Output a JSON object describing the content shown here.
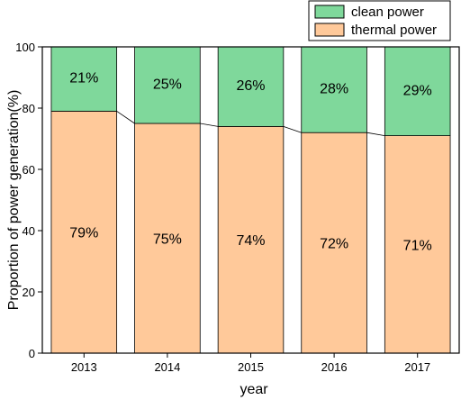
{
  "chart_data": {
    "type": "bar",
    "stacked": true,
    "normalized": true,
    "categories": [
      "2013",
      "2014",
      "2015",
      "2016",
      "2017"
    ],
    "series": [
      {
        "name": "thermal power",
        "values": [
          79,
          75,
          74,
          72,
          71
        ],
        "labels": [
          "79%",
          "75%",
          "74%",
          "72%",
          "71%"
        ],
        "color": "#FFC99A"
      },
      {
        "name": "clean power",
        "values": [
          21,
          25,
          26,
          28,
          29
        ],
        "labels": [
          "21%",
          "25%",
          "26%",
          "28%",
          "29%"
        ],
        "color": "#7FD89B"
      }
    ],
    "connector_lines": true,
    "xlabel": "year",
    "ylabel": "Proportion of power generation(%)",
    "ylim": [
      0,
      100
    ],
    "yticks": [
      0,
      20,
      40,
      60,
      80,
      100
    ],
    "grid": false,
    "legend": {
      "position": "top-right",
      "entries": [
        "clean power",
        "thermal power"
      ]
    }
  }
}
